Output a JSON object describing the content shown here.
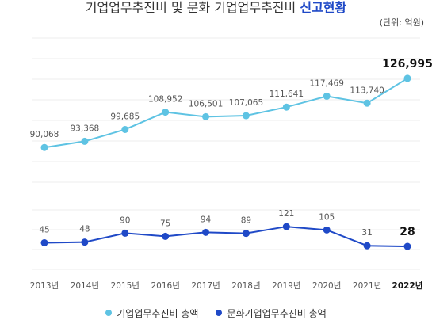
{
  "title": {
    "prefix": "기업업무추진비 및 문화 기업업무추진비",
    "highlight": "신고현황"
  },
  "unit_label": "(단위: 억원)",
  "chart_data": {
    "type": "line",
    "categories": [
      "2013년",
      "2014년",
      "2015년",
      "2016년",
      "2017년",
      "2018년",
      "2019년",
      "2020년",
      "2021년",
      "2022년"
    ],
    "series": [
      {
        "name": "기업업무추진비 총액",
        "values": [
          90068,
          93368,
          99685,
          108952,
          106501,
          107065,
          111641,
          117469,
          113740,
          126995
        ],
        "labels": [
          "90,068",
          "93,368",
          "99,685",
          "108,952",
          "106,501",
          "107,065",
          "111,641",
          "117,469",
          "113,740",
          "126,995"
        ],
        "color": "#5ec3e3"
      },
      {
        "name": "문화기업업무추진비 총액",
        "values": [
          45,
          48,
          90,
          75,
          94,
          89,
          121,
          105,
          31,
          28
        ],
        "labels": [
          "45",
          "48",
          "90",
          "75",
          "94",
          "89",
          "121",
          "105",
          "31",
          "28"
        ],
        "color": "#1f49c7"
      }
    ],
    "highlight_last": true
  }
}
